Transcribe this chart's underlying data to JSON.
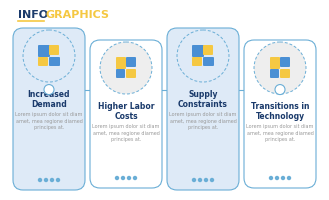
{
  "title_info": "INFO",
  "title_graphics": "GRAPHICS",
  "title_info_color": "#1a3a6b",
  "title_graphics_color": "#f5c842",
  "title_underline_color": "#f5c842",
  "bg_color": "#ffffff",
  "cards": [
    {
      "title": "Increased\nDemand",
      "body": "Lorem ipsum dolor sit diam\namet, mea regione diamed\nprincipes at.",
      "bg": "#deeaf7",
      "border": "#6aaed6",
      "elevated": true
    },
    {
      "title": "Higher Labor\nCosts",
      "body": "Lorem ipsum dolor sit diam\namet, mea regione diamed\nprincipes at.",
      "bg": "#ffffff",
      "border": "#6aaed6",
      "elevated": false
    },
    {
      "title": "Supply\nConstraints",
      "body": "Lorem ipsum dolor sit diam\namet, mea regione diamed\nprincipes at.",
      "bg": "#deeaf7",
      "border": "#6aaed6",
      "elevated": true
    },
    {
      "title": "Transitions in\nTechnology",
      "body": "Lorem ipsum dolor sit diam\namet, mea regione diamed\nprincipes at.",
      "bg": "#ffffff",
      "border": "#6aaed6",
      "elevated": false
    }
  ],
  "connector_color": "#6aaed6",
  "dot_color": "#6aaed6",
  "circle_bg_elevated": "#deeaf7",
  "circle_bg_normal": "#eeeeee",
  "icon_colors_elevated": [
    "#4a8fd4",
    "#f5c842"
  ],
  "icon_colors_normal": [
    "#f5c842",
    "#4a8fd4"
  ],
  "card_title_color": "#1a3a6b",
  "body_text_color": "#999999",
  "title_fontsize": 5.5,
  "body_fontsize": 3.5
}
